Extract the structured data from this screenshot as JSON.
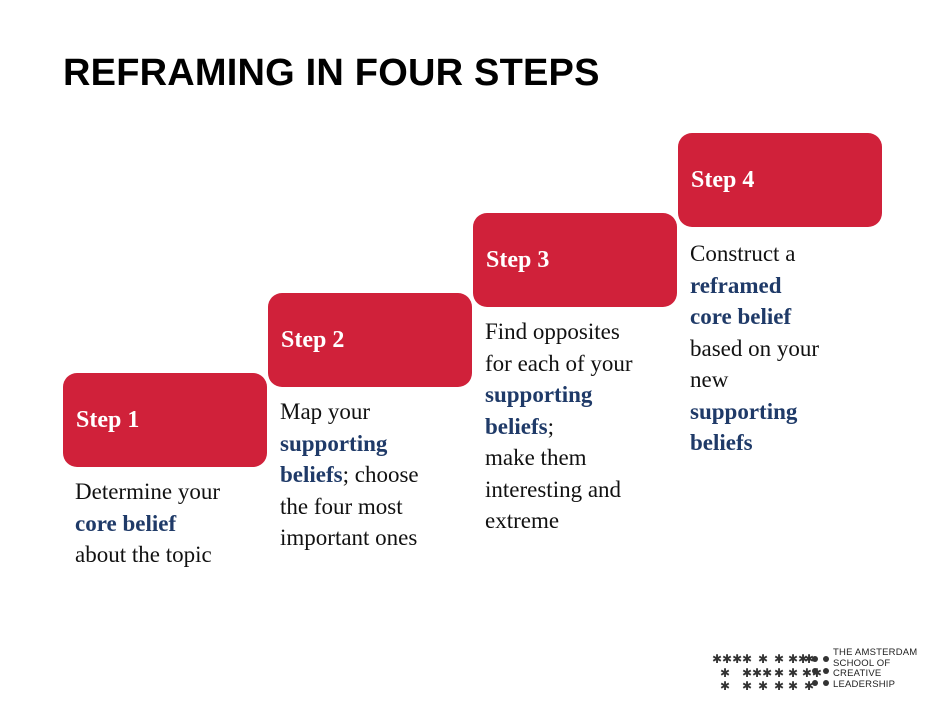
{
  "title": "REFRAMING IN FOUR STEPS",
  "steps": [
    {
      "label": "Step 1",
      "lines": [
        [
          {
            "t": "Determine your",
            "b": false
          }
        ],
        [
          {
            "t": "core belief",
            "b": true
          }
        ],
        [
          {
            "t": "about the topic",
            "b": false
          }
        ]
      ]
    },
    {
      "label": "Step 2",
      "lines": [
        [
          {
            "t": "Map your",
            "b": false
          }
        ],
        [
          {
            "t": "supporting",
            "b": true
          }
        ],
        [
          {
            "t": "beliefs",
            "b": true
          },
          {
            "t": "; choose",
            "b": false
          }
        ],
        [
          {
            "t": "the four most",
            "b": false
          }
        ],
        [
          {
            "t": "important ones",
            "b": false
          }
        ]
      ]
    },
    {
      "label": "Step 3",
      "lines": [
        [
          {
            "t": "Find opposites",
            "b": false
          }
        ],
        [
          {
            "t": "for each of your",
            "b": false
          }
        ],
        [
          {
            "t": "supporting",
            "b": true
          }
        ],
        [
          {
            "t": "beliefs",
            "b": true
          },
          {
            "t": ";",
            "b": false
          }
        ],
        [
          {
            "t": "make them",
            "b": false
          }
        ],
        [
          {
            "t": "interesting and",
            "b": false
          }
        ],
        [
          {
            "t": "extreme",
            "b": false
          }
        ]
      ]
    },
    {
      "label": "Step 4",
      "lines": [
        [
          {
            "t": "Construct a",
            "b": false
          }
        ],
        [
          {
            "t": "reframed",
            "b": true
          }
        ],
        [
          {
            "t": "core belief",
            "b": true
          }
        ],
        [
          {
            "t": "based on your",
            "b": false
          }
        ],
        [
          {
            "t": "new",
            "b": false
          }
        ],
        [
          {
            "t": "supporting",
            "b": true
          }
        ],
        [
          {
            "t": "beliefs",
            "b": true
          }
        ]
      ]
    }
  ],
  "logo": {
    "lines": [
      "THE AMSTERDAM",
      "SCHOOL OF",
      "CREATIVE",
      "LEADERSHIP"
    ]
  },
  "colors": {
    "step_box": "#d0213a",
    "highlight": "#1f3a68"
  }
}
